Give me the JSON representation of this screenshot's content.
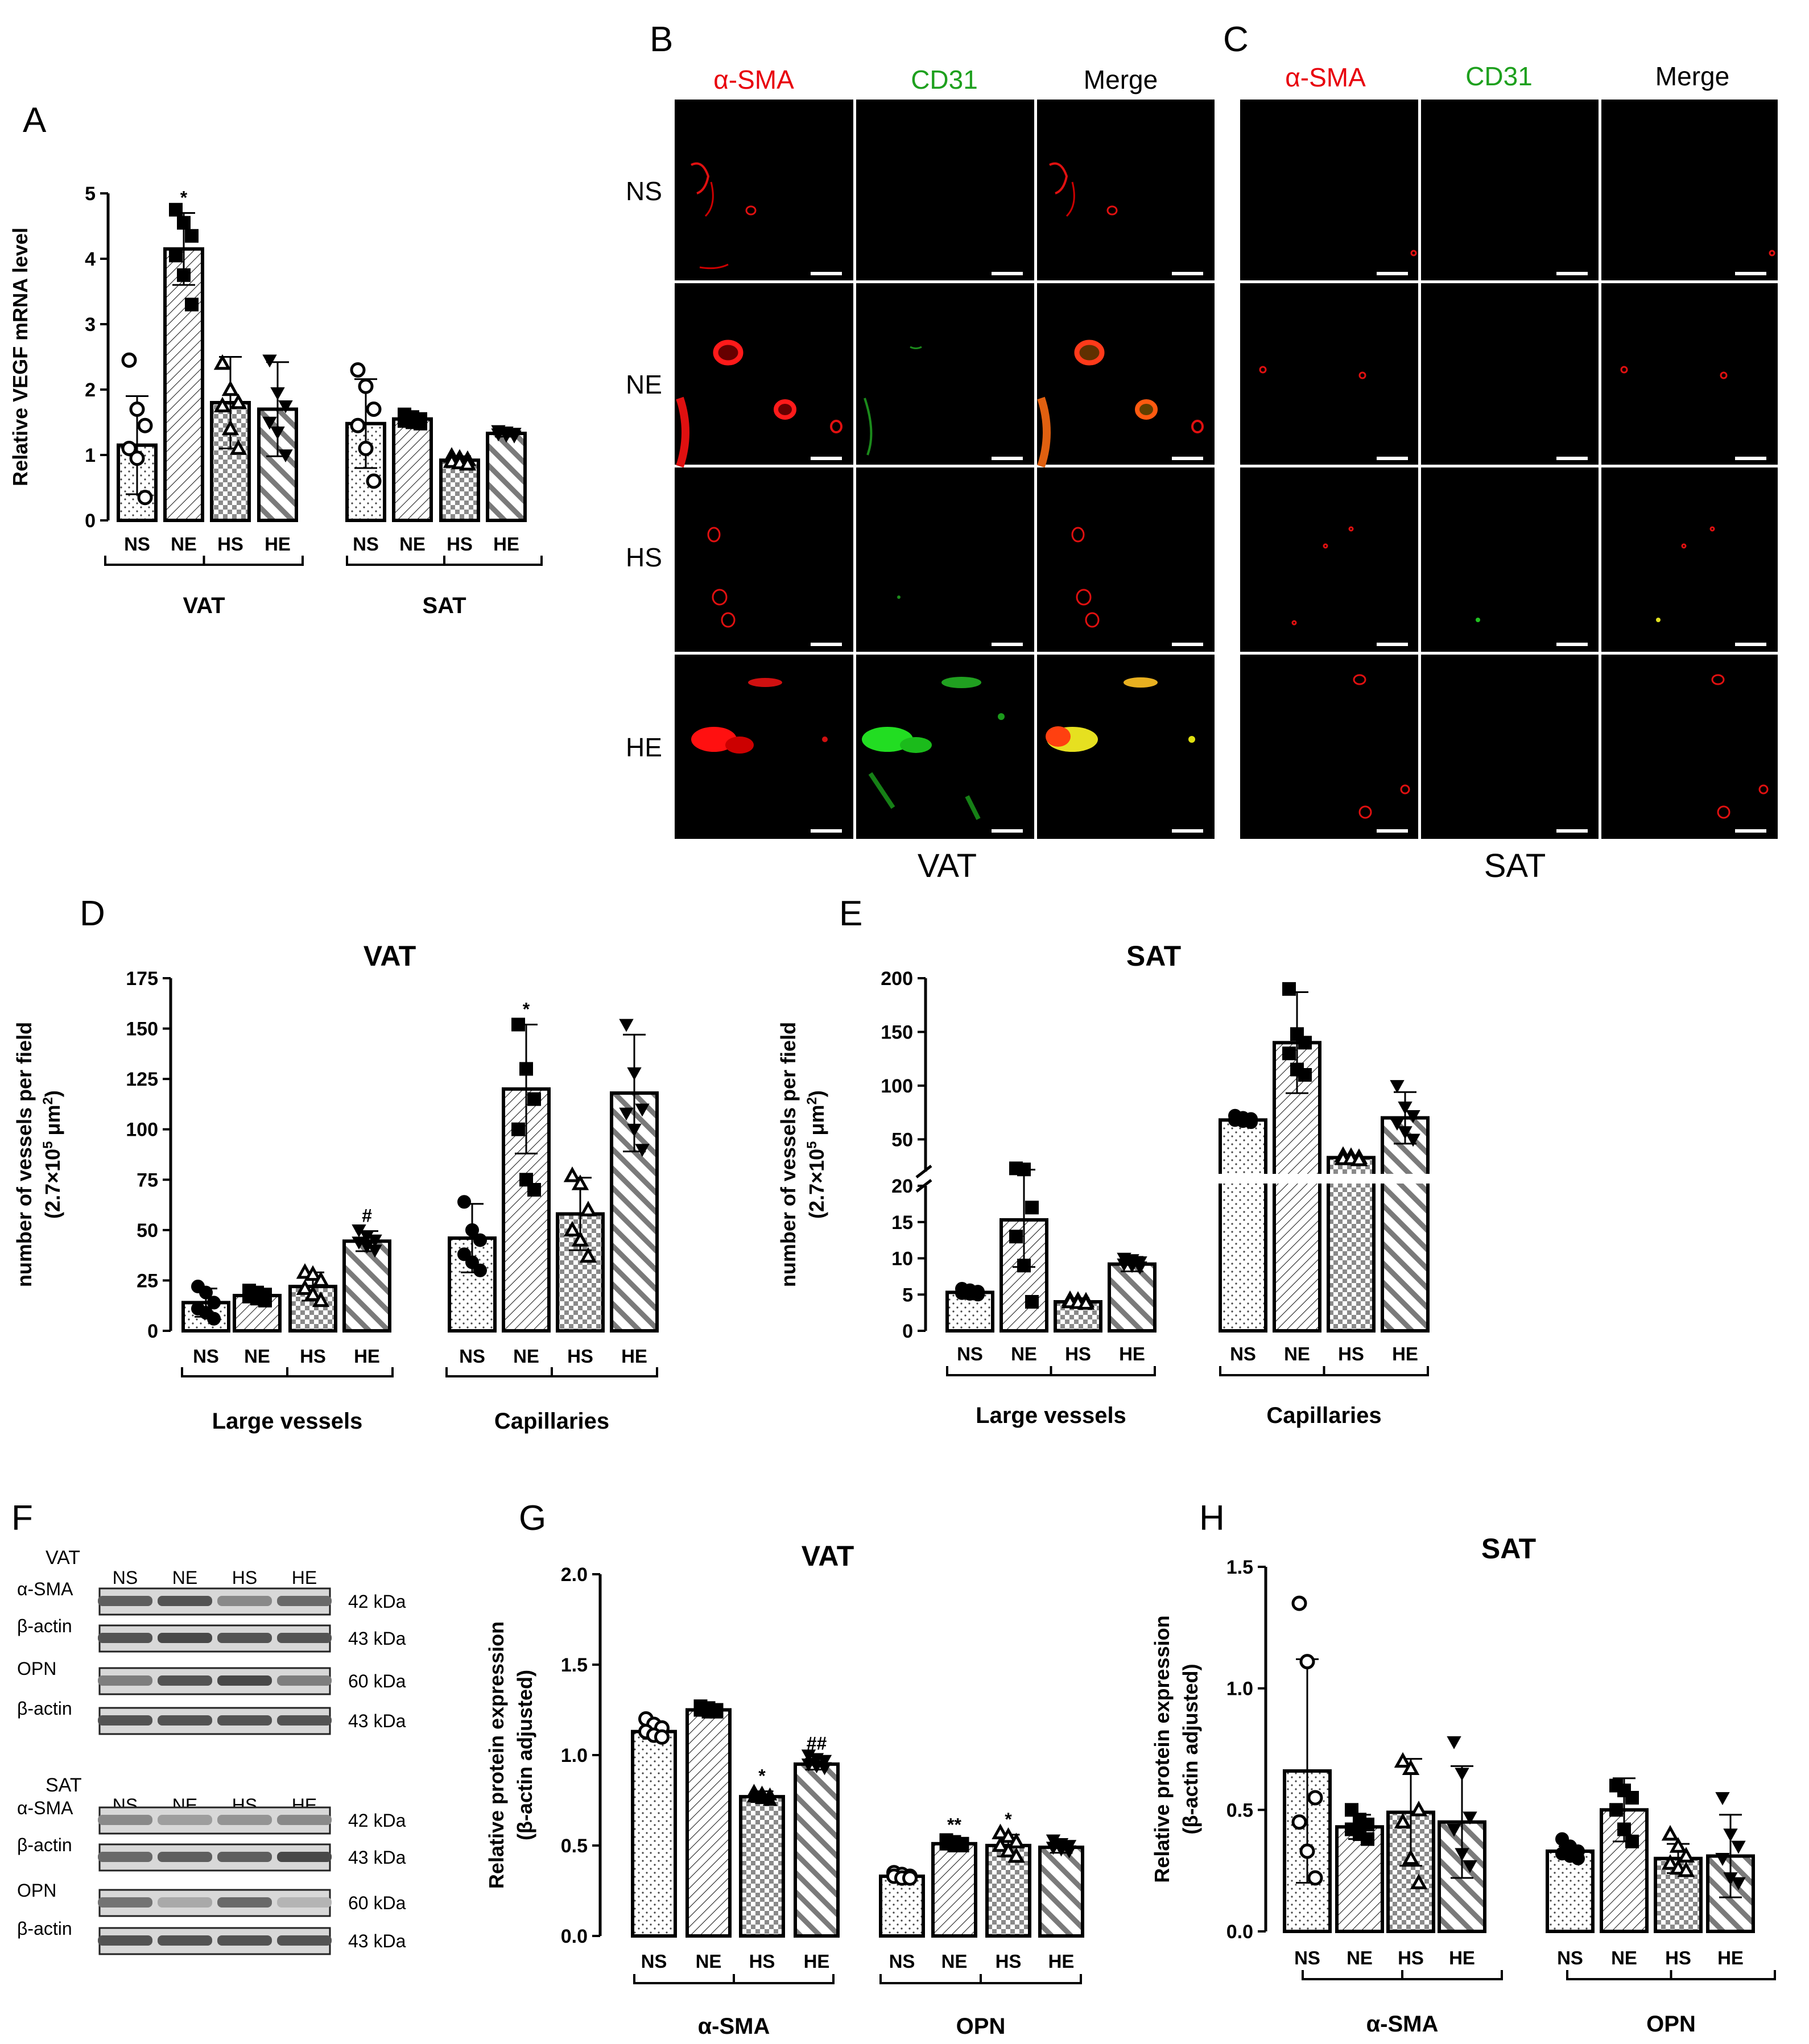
{
  "panel_letters": {
    "a": "A",
    "b": "B",
    "c": "C",
    "d": "D",
    "e": "E",
    "f": "F",
    "g": "G",
    "h": "H"
  },
  "colors": {
    "red_label": "#e8000b",
    "green_label": "#1ea01e",
    "bar_edge": "#000000",
    "image_bg": "#000000"
  },
  "groups": [
    "NS",
    "NE",
    "HS",
    "HE"
  ],
  "chart_data": [
    {
      "id": "A",
      "type": "bar",
      "title": "",
      "ylabel": "Relative VEGF mRNA level",
      "ylim": [
        0,
        5
      ],
      "yticks": [
        0,
        1,
        2,
        3,
        4,
        5
      ],
      "categories": [
        "NS",
        "NE",
        "HS",
        "HE",
        "NS",
        "NE",
        "HS",
        "HE"
      ],
      "group_labels": [
        "VAT",
        "SAT"
      ],
      "values": [
        1.15,
        4.15,
        1.8,
        1.7,
        1.48,
        1.55,
        0.92,
        1.33
      ],
      "errors": [
        0.75,
        0.55,
        0.7,
        0.72,
        0.68,
        0.08,
        0.06,
        0.05
      ],
      "points": [
        [
          2.45,
          1.7,
          1.45,
          1.1,
          0.95,
          0.35
        ],
        [
          4.75,
          4.55,
          4.35,
          4.05,
          3.75,
          3.3
        ],
        [
          2.4,
          2.0,
          1.8,
          1.75,
          1.4,
          1.1
        ],
        [
          2.45,
          1.95,
          1.75,
          1.5,
          1.35,
          1.0
        ],
        [
          2.3,
          2.05,
          1.7,
          1.45,
          1.1,
          0.6
        ],
        [
          1.62,
          1.58,
          1.55,
          1.52,
          1.5,
          1.48
        ],
        [
          0.98,
          0.95,
          0.93,
          0.9,
          0.88,
          0.86
        ],
        [
          1.37,
          1.35,
          1.33,
          1.32,
          1.3,
          1.29
        ]
      ],
      "markers": [
        "circle-open",
        "square",
        "triangle-open",
        "triangle-down",
        "circle-open",
        "square",
        "triangle-open",
        "triangle-down"
      ],
      "annotations": [
        "",
        "*",
        "",
        "",
        "",
        "",
        "",
        ""
      ]
    },
    {
      "id": "D",
      "type": "bar",
      "title": "VAT",
      "ylabel": "number of vessels per field",
      "ylabel2": "(2.7×10",
      "ylim": [
        0,
        175
      ],
      "yticks": [
        0,
        25,
        50,
        75,
        100,
        125,
        150,
        175
      ],
      "categories": [
        "NS",
        "NE",
        "HS",
        "HE",
        "NS",
        "NE",
        "HS",
        "HE"
      ],
      "group_labels": [
        "Large vessels",
        "Capillaries"
      ],
      "values": [
        14,
        17.5,
        22,
        44.5,
        46,
        120,
        58,
        118
      ],
      "errors": [
        7,
        2.5,
        7,
        5,
        17,
        32,
        18,
        29
      ],
      "points": [
        [
          22,
          19,
          14,
          11,
          9,
          6
        ],
        [
          20,
          19,
          18,
          17,
          16,
          15
        ],
        [
          29,
          28,
          25,
          21,
          18,
          15
        ],
        [
          50,
          47,
          45,
          44,
          42,
          40
        ],
        [
          64,
          50,
          45,
          38,
          34,
          30
        ],
        [
          152,
          130,
          115,
          100,
          75,
          70
        ],
        [
          77,
          73,
          60,
          50,
          45,
          37
        ],
        [
          152,
          128,
          110,
          108,
          100,
          90
        ]
      ],
      "markers": [
        "circle",
        "square",
        "triangle-open",
        "triangle-down",
        "circle",
        "square",
        "triangle-open",
        "triangle-down"
      ],
      "annotations": [
        "",
        "",
        "",
        "#",
        "",
        "*",
        "",
        ""
      ]
    },
    {
      "id": "E",
      "type": "bar",
      "title": "SAT",
      "ylabel": "number of vessels per field",
      "ylabel2": "(2.7×10",
      "ylim_lower": [
        0,
        20
      ],
      "ylim_upper": [
        20,
        200
      ],
      "yticks": [
        0,
        5,
        10,
        15,
        20,
        50,
        100,
        150,
        200
      ],
      "categories": [
        "NS",
        "NE",
        "HS",
        "HE",
        "NS",
        "NE",
        "HS",
        "HE"
      ],
      "group_labels": [
        "Large vessels",
        "Capillaries"
      ],
      "values": [
        5.3,
        15.3,
        4,
        9.2,
        68,
        140,
        33,
        70
      ],
      "errors": [
        0.5,
        6.5,
        0.5,
        1,
        3,
        47,
        2,
        24
      ],
      "points": [
        [
          5.8,
          5.6,
          5.4,
          5.2,
          5.1,
          5.0
        ],
        [
          23,
          22,
          17,
          13,
          9,
          4
        ],
        [
          4.3,
          4.2,
          4.1,
          4.0,
          3.9,
          3.8
        ],
        [
          10,
          9.8,
          9.5,
          9.2,
          9.0,
          8.8
        ],
        [
          72,
          70,
          69,
          68,
          67,
          66
        ],
        [
          190,
          148,
          140,
          130,
          115,
          110
        ],
        [
          35,
          34,
          33,
          32,
          32,
          31
        ],
        [
          100,
          80,
          72,
          65,
          57,
          50
        ]
      ],
      "markers": [
        "circle",
        "square",
        "triangle-open",
        "triangle-down",
        "circle",
        "square",
        "triangle-open",
        "triangle-down"
      ],
      "annotations": [
        "",
        "",
        "",
        "",
        "",
        "",
        "",
        ""
      ]
    },
    {
      "id": "G",
      "type": "bar",
      "title": "VAT",
      "ylabel": "Relative protein expression",
      "ylabel2": "(β-actin adjusted)",
      "ylim": [
        0,
        2
      ],
      "yticks": [
        0.0,
        0.5,
        1.0,
        1.5,
        2.0
      ],
      "categories": [
        "NS",
        "NE",
        "HS",
        "HE",
        "NS",
        "NE",
        "HS",
        "HE"
      ],
      "group_labels": [
        "α-SMA",
        "OPN"
      ],
      "values": [
        1.13,
        1.25,
        0.77,
        0.95,
        0.33,
        0.51,
        0.5,
        0.49
      ],
      "errors": [
        0.04,
        0.02,
        0.03,
        0.03,
        0.02,
        0.02,
        0.06,
        0.03
      ],
      "points": [
        [
          1.2,
          1.17,
          1.15,
          1.13,
          1.11,
          1.1
        ],
        [
          1.27,
          1.26,
          1.25,
          1.25,
          1.24,
          1.24
        ],
        [
          0.8,
          0.79,
          0.78,
          0.77,
          0.76,
          0.75
        ],
        [
          1.0,
          0.98,
          0.97,
          0.95,
          0.94,
          0.93
        ],
        [
          0.35,
          0.34,
          0.33,
          0.33,
          0.32,
          0.32
        ],
        [
          0.53,
          0.52,
          0.51,
          0.51,
          0.5,
          0.5
        ],
        [
          0.57,
          0.55,
          0.52,
          0.5,
          0.47,
          0.44
        ],
        [
          0.53,
          0.51,
          0.5,
          0.49,
          0.48,
          0.47
        ]
      ],
      "markers": [
        "circle-open",
        "square",
        "triangle",
        "triangle-down",
        "circle-open",
        "square",
        "triangle-open",
        "triangle-down"
      ],
      "annotations": [
        "",
        "",
        "*",
        "##",
        "",
        "**",
        "*",
        ""
      ]
    },
    {
      "id": "H",
      "type": "bar",
      "title": "SAT",
      "ylabel": "Relative protein expression",
      "ylabel2": "(β-actin adjusted)",
      "ylim": [
        0,
        1.5
      ],
      "yticks": [
        0.0,
        0.5,
        1.0,
        1.5
      ],
      "categories": [
        "NS",
        "NE",
        "HS",
        "HE",
        "NS",
        "NE",
        "HS",
        "HE"
      ],
      "group_labels": [
        "α-SMA",
        "OPN"
      ],
      "values": [
        0.66,
        0.43,
        0.49,
        0.45,
        0.33,
        0.5,
        0.3,
        0.31
      ],
      "errors": [
        0.46,
        0.05,
        0.22,
        0.23,
        0.02,
        0.13,
        0.06,
        0.17
      ],
      "points": [
        [
          1.35,
          1.11,
          0.55,
          0.45,
          0.33,
          0.22
        ],
        [
          0.5,
          0.46,
          0.44,
          0.42,
          0.4,
          0.38
        ],
        [
          0.7,
          0.67,
          0.5,
          0.45,
          0.3,
          0.2
        ],
        [
          0.78,
          0.65,
          0.47,
          0.42,
          0.32,
          0.27
        ],
        [
          0.38,
          0.35,
          0.33,
          0.32,
          0.31,
          0.3
        ],
        [
          0.6,
          0.58,
          0.55,
          0.5,
          0.42,
          0.37
        ],
        [
          0.4,
          0.35,
          0.31,
          0.28,
          0.26,
          0.25
        ],
        [
          0.55,
          0.4,
          0.35,
          0.3,
          0.22,
          0.2
        ]
      ],
      "markers": [
        "circle-open",
        "square",
        "triangle-open",
        "triangle-down",
        "circle",
        "square",
        "triangle-open",
        "triangle-down"
      ],
      "annotations": [
        "",
        "",
        "",
        "",
        "",
        "",
        "",
        ""
      ]
    }
  ],
  "microscopy": {
    "col_labels": [
      "α-SMA",
      "CD31",
      "Merge"
    ],
    "row_labels": [
      "NS",
      "NE",
      "HS",
      "HE"
    ],
    "captions": [
      "VAT",
      "SAT"
    ]
  },
  "western": {
    "sections": [
      {
        "name": "VAT",
        "lanes": [
          "NS",
          "NE",
          "HS",
          "HE"
        ],
        "rows": [
          {
            "label": "α-SMA",
            "kda": "42 kDa"
          },
          {
            "label": "β-actin",
            "kda": "43 kDa"
          },
          {
            "label": "OPN",
            "kda": "60 kDa"
          },
          {
            "label": "β-actin",
            "kda": "43 kDa"
          }
        ]
      },
      {
        "name": "SAT",
        "lanes": [
          "NS",
          "NE",
          "HS",
          "HE"
        ],
        "rows": [
          {
            "label": "α-SMA",
            "kda": "42 kDa"
          },
          {
            "label": "β-actin",
            "kda": "43 kDa"
          },
          {
            "label": "OPN",
            "kda": "60 kDa"
          },
          {
            "label": "β-actin",
            "kda": "43 kDa"
          }
        ]
      }
    ]
  }
}
